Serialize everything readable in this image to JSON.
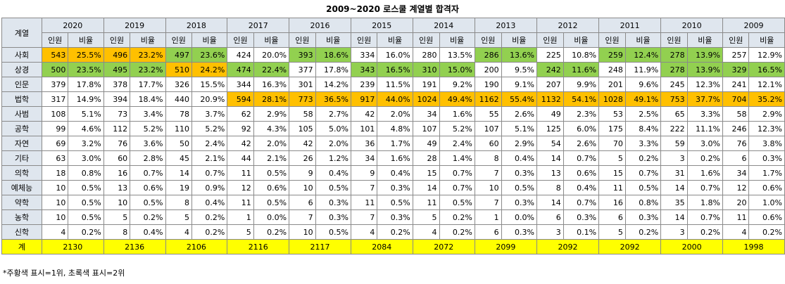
{
  "title": "2009~2020 로스쿨 계열별 합격자",
  "colors": {
    "first": "#ffc000",
    "second": "#92d050",
    "total": "#ffff00",
    "header": "#dfe6ee"
  },
  "header": {
    "category_label": "계열",
    "years": [
      "2020",
      "2019",
      "2018",
      "2017",
      "2016",
      "2015",
      "2014",
      "2013",
      "2012",
      "2011",
      "2010",
      "2009"
    ],
    "sub_labels": [
      "인원",
      "비율"
    ]
  },
  "rows": [
    {
      "name": "사회",
      "cells": [
        [
          "543",
          "25.5%",
          1
        ],
        [
          "496",
          "23.2%",
          1
        ],
        [
          "497",
          "23.6%",
          2
        ],
        [
          "424",
          "20.0%",
          0
        ],
        [
          "393",
          "18.6%",
          2
        ],
        [
          "334",
          "16.0%",
          0
        ],
        [
          "280",
          "13.5%",
          0
        ],
        [
          "286",
          "13.6%",
          2
        ],
        [
          "225",
          "10.8%",
          0
        ],
        [
          "259",
          "12.4%",
          2
        ],
        [
          "278",
          "13.9%",
          2
        ],
        [
          "257",
          "12.9%",
          0
        ]
      ]
    },
    {
      "name": "상경",
      "cells": [
        [
          "500",
          "23.5%",
          2
        ],
        [
          "495",
          "23.2%",
          2
        ],
        [
          "510",
          "24.2%",
          1
        ],
        [
          "474",
          "22.4%",
          2
        ],
        [
          "377",
          "17.8%",
          0
        ],
        [
          "343",
          "16.5%",
          2
        ],
        [
          "310",
          "15.0%",
          2
        ],
        [
          "200",
          "9.5%",
          0
        ],
        [
          "242",
          "11.6%",
          2
        ],
        [
          "248",
          "11.9%",
          0
        ],
        [
          "278",
          "13.9%",
          2
        ],
        [
          "329",
          "16.5%",
          2
        ]
      ]
    },
    {
      "name": "인문",
      "cells": [
        [
          "379",
          "17.8%",
          0
        ],
        [
          "378",
          "17.7%",
          0
        ],
        [
          "326",
          "15.5%",
          0
        ],
        [
          "344",
          "16.3%",
          0
        ],
        [
          "301",
          "14.2%",
          0
        ],
        [
          "239",
          "11.5%",
          0
        ],
        [
          "191",
          "9.2%",
          0
        ],
        [
          "190",
          "9.1%",
          0
        ],
        [
          "207",
          "9.9%",
          0
        ],
        [
          "201",
          "9.6%",
          0
        ],
        [
          "245",
          "12.3%",
          0
        ],
        [
          "241",
          "12.1%",
          0
        ]
      ]
    },
    {
      "name": "법학",
      "cells": [
        [
          "317",
          "14.9%",
          0
        ],
        [
          "394",
          "18.4%",
          0
        ],
        [
          "440",
          "20.9%",
          0
        ],
        [
          "594",
          "28.1%",
          1
        ],
        [
          "773",
          "36.5%",
          1
        ],
        [
          "917",
          "44.0%",
          1
        ],
        [
          "1024",
          "49.4%",
          1
        ],
        [
          "1162",
          "55.4%",
          1
        ],
        [
          "1132",
          "54.1%",
          1
        ],
        [
          "1028",
          "49.1%",
          1
        ],
        [
          "753",
          "37.7%",
          1
        ],
        [
          "704",
          "35.2%",
          1
        ]
      ]
    },
    {
      "name": "사범",
      "cells": [
        [
          "108",
          "5.1%",
          0
        ],
        [
          "73",
          "3.4%",
          0
        ],
        [
          "78",
          "3.7%",
          0
        ],
        [
          "62",
          "2.9%",
          0
        ],
        [
          "58",
          "2.7%",
          0
        ],
        [
          "42",
          "2.0%",
          0
        ],
        [
          "34",
          "1.6%",
          0
        ],
        [
          "55",
          "2.6%",
          0
        ],
        [
          "49",
          "2.3%",
          0
        ],
        [
          "53",
          "2.5%",
          0
        ],
        [
          "65",
          "3.3%",
          0
        ],
        [
          "58",
          "2.9%",
          0
        ]
      ]
    },
    {
      "name": "공학",
      "cells": [
        [
          "99",
          "4.6%",
          0
        ],
        [
          "112",
          "5.2%",
          0
        ],
        [
          "110",
          "5.2%",
          0
        ],
        [
          "92",
          "4.3%",
          0
        ],
        [
          "105",
          "5.0%",
          0
        ],
        [
          "101",
          "4.8%",
          0
        ],
        [
          "107",
          "5.2%",
          0
        ],
        [
          "107",
          "5.1%",
          0
        ],
        [
          "125",
          "6.0%",
          0
        ],
        [
          "175",
          "8.4%",
          0
        ],
        [
          "222",
          "11.1%",
          0
        ],
        [
          "246",
          "12.3%",
          0
        ]
      ]
    },
    {
      "name": "자연",
      "cells": [
        [
          "69",
          "3.2%",
          0
        ],
        [
          "76",
          "3.6%",
          0
        ],
        [
          "50",
          "2.4%",
          0
        ],
        [
          "42",
          "2.0%",
          0
        ],
        [
          "42",
          "2.0%",
          0
        ],
        [
          "36",
          "1.7%",
          0
        ],
        [
          "49",
          "2.4%",
          0
        ],
        [
          "60",
          "2.9%",
          0
        ],
        [
          "54",
          "2.6%",
          0
        ],
        [
          "70",
          "3.3%",
          0
        ],
        [
          "59",
          "3.0%",
          0
        ],
        [
          "76",
          "3.8%",
          0
        ]
      ]
    },
    {
      "name": "기타",
      "cells": [
        [
          "63",
          "3.0%",
          0
        ],
        [
          "60",
          "2.8%",
          0
        ],
        [
          "45",
          "2.1%",
          0
        ],
        [
          "44",
          "2.1%",
          0
        ],
        [
          "26",
          "1.2%",
          0
        ],
        [
          "34",
          "1.6%",
          0
        ],
        [
          "28",
          "1.4%",
          0
        ],
        [
          "8",
          "0.4%",
          0
        ],
        [
          "14",
          "0.7%",
          0
        ],
        [
          "5",
          "0.2%",
          0
        ],
        [
          "3",
          "0.2%",
          0
        ],
        [
          "6",
          "0.3%",
          0
        ]
      ]
    },
    {
      "name": "의학",
      "cells": [
        [
          "18",
          "0.8%",
          0
        ],
        [
          "16",
          "0.7%",
          0
        ],
        [
          "14",
          "0.7%",
          0
        ],
        [
          "11",
          "0.5%",
          0
        ],
        [
          "9",
          "0.4%",
          0
        ],
        [
          "9",
          "0.4%",
          0
        ],
        [
          "15",
          "0.7%",
          0
        ],
        [
          "7",
          "0.3%",
          0
        ],
        [
          "13",
          "0.6%",
          0
        ],
        [
          "15",
          "0.7%",
          0
        ],
        [
          "31",
          "1.6%",
          0
        ],
        [
          "34",
          "1.7%",
          0
        ]
      ]
    },
    {
      "name": "예체능",
      "cells": [
        [
          "10",
          "0.5%",
          0
        ],
        [
          "13",
          "0.6%",
          0
        ],
        [
          "19",
          "0.9%",
          0
        ],
        [
          "12",
          "0.6%",
          0
        ],
        [
          "10",
          "0.5%",
          0
        ],
        [
          "7",
          "0.3%",
          0
        ],
        [
          "14",
          "0.7%",
          0
        ],
        [
          "10",
          "0.5%",
          0
        ],
        [
          "8",
          "0.4%",
          0
        ],
        [
          "11",
          "0.5%",
          0
        ],
        [
          "14",
          "0.7%",
          0
        ],
        [
          "12",
          "0.6%",
          0
        ]
      ]
    },
    {
      "name": "약학",
      "cells": [
        [
          "10",
          "0.5%",
          0
        ],
        [
          "10",
          "0.5%",
          0
        ],
        [
          "8",
          "0.4%",
          0
        ],
        [
          "11",
          "0.5%",
          0
        ],
        [
          "6",
          "0.3%",
          0
        ],
        [
          "11",
          "0.5%",
          0
        ],
        [
          "11",
          "0.5%",
          0
        ],
        [
          "7",
          "0.3%",
          0
        ],
        [
          "14",
          "0.7%",
          0
        ],
        [
          "16",
          "0.8%",
          0
        ],
        [
          "35",
          "1.8%",
          0
        ],
        [
          "20",
          "1.0%",
          0
        ]
      ]
    },
    {
      "name": "농학",
      "cells": [
        [
          "10",
          "0.5%",
          0
        ],
        [
          "5",
          "0.2%",
          0
        ],
        [
          "5",
          "0.2%",
          0
        ],
        [
          "1",
          "0.0%",
          0
        ],
        [
          "7",
          "0.3%",
          0
        ],
        [
          "7",
          "0.3%",
          0
        ],
        [
          "5",
          "0.2%",
          0
        ],
        [
          "1",
          "0.0%",
          0
        ],
        [
          "6",
          "0.3%",
          0
        ],
        [
          "6",
          "0.3%",
          0
        ],
        [
          "14",
          "0.7%",
          0
        ],
        [
          "11",
          "0.6%",
          0
        ]
      ]
    },
    {
      "name": "신학",
      "cells": [
        [
          "4",
          "0.2%",
          0
        ],
        [
          "8",
          "0.4%",
          0
        ],
        [
          "4",
          "0.2%",
          0
        ],
        [
          "5",
          "0.2%",
          0
        ],
        [
          "10",
          "0.5%",
          0
        ],
        [
          "4",
          "0.2%",
          0
        ],
        [
          "4",
          "0.2%",
          0
        ],
        [
          "6",
          "0.3%",
          0
        ],
        [
          "3",
          "0.1%",
          0
        ],
        [
          "5",
          "0.2%",
          0
        ],
        [
          "3",
          "0.2%",
          0
        ],
        [
          "4",
          "0.2%",
          0
        ]
      ]
    }
  ],
  "total": {
    "label": "계",
    "values": [
      "2130",
      "2136",
      "2106",
      "2116",
      "2117",
      "2084",
      "2072",
      "2099",
      "2092",
      "2092",
      "2000",
      "1998"
    ]
  },
  "footnote": "*주황색 표시=1위, 초록색 표시=2위"
}
